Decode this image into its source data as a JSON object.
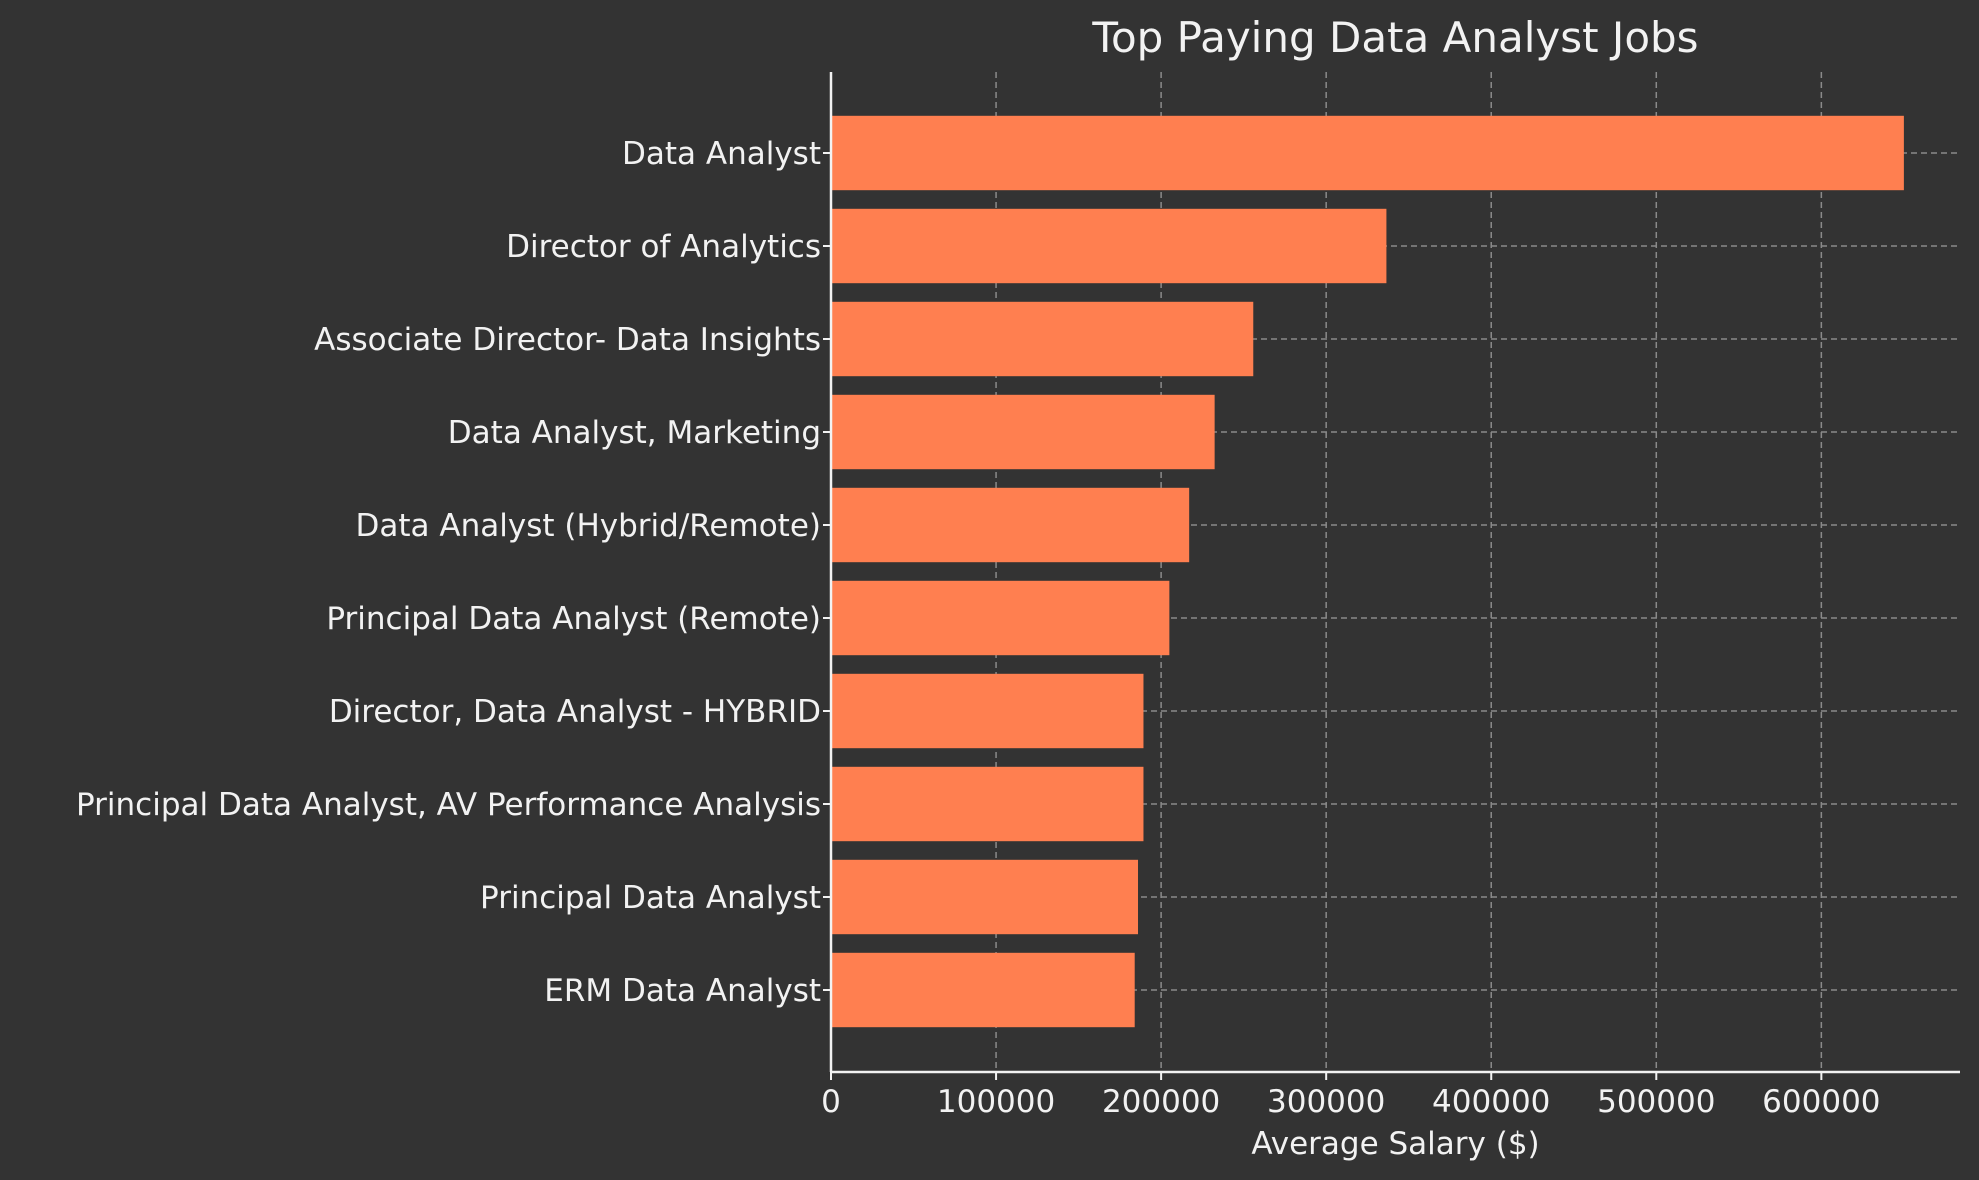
{
  "chart_data": {
    "type": "bar",
    "orientation": "horizontal",
    "title": "Top Paying Data Analyst Jobs",
    "xlabel": "Average Salary ($)",
    "ylabel": "",
    "categories": [
      "Data Analyst",
      "Director of Analytics",
      "Associate Director- Data Insights",
      "Data Analyst, Marketing",
      "Data Analyst (Hybrid/Remote)",
      "Principal Data Analyst (Remote)",
      "Director, Data Analyst - HYBRID",
      "Principal Data Analyst, AV Performance Analysis",
      "Principal Data Analyst",
      "ERM Data Analyst"
    ],
    "values": [
      650000,
      336500,
      255830,
      232423,
      217000,
      205000,
      189309,
      189309,
      186000,
      184000
    ],
    "xlim": [
      0,
      684000
    ],
    "xticks": [
      0,
      100000,
      200000,
      300000,
      400000,
      500000,
      600000
    ],
    "xtick_labels": [
      "0",
      "100000",
      "200000",
      "300000",
      "400000",
      "500000",
      "600000"
    ],
    "grid": true,
    "colors": {
      "background": "#333333",
      "bar": "#ff7f50",
      "grid": "#8a8a8a",
      "axis": "#f2f2f2",
      "text": "#f2f2f2"
    }
  }
}
